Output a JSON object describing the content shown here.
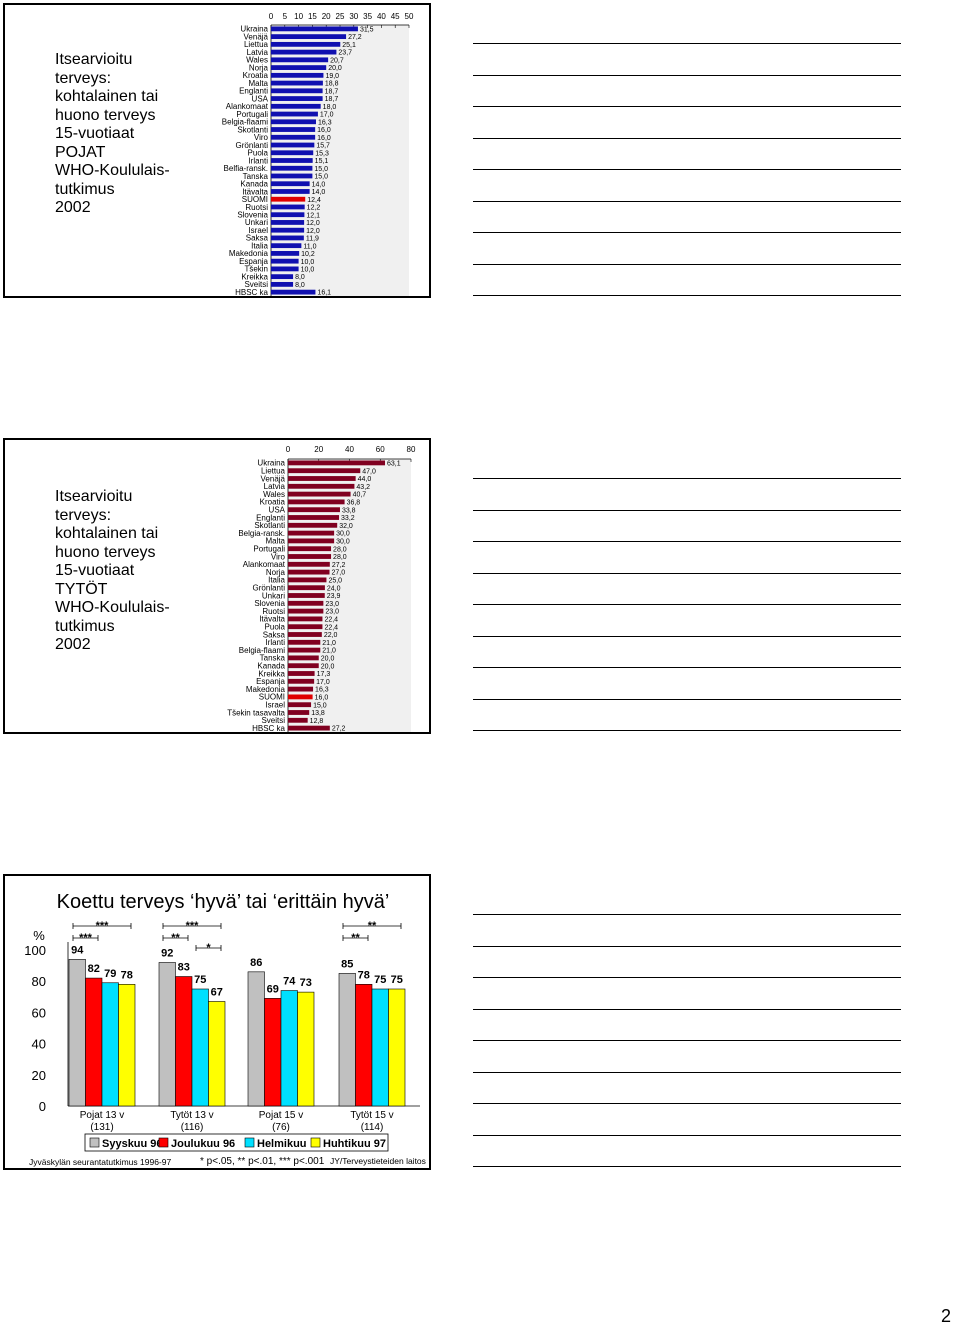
{
  "page_number": "2",
  "panels": {
    "boys": {
      "title_lines": [
        "Itsearvioitu",
        "terveys:",
        "kohtalainen tai",
        "huono terveys",
        "15-vuotiaat",
        "POJAT",
        "WHO-Koululais-",
        "tutkimus",
        "2002"
      ]
    },
    "girls": {
      "title_lines": [
        "Itsearvioitu",
        "terveys:",
        "kohtalainen tai",
        "huono terveys",
        "15-vuotiaat",
        "TYTÖT",
        "WHO-Koululais-",
        "tutkimus",
        "2002"
      ]
    },
    "health": {
      "title": "Koettu terveys ‘hyvä’ tai ‘erittäin hyvä’",
      "footer_left": "Jyväskylän seurantatutkimus 1996-97",
      "footer_mid": "* p<.05, ** p<.01, *** p<.001",
      "footer_right": "JY/Terveystieteiden laitos"
    }
  },
  "chart_data": [
    {
      "type": "bar",
      "orientation": "horizontal",
      "xlim": [
        0,
        50
      ],
      "xticks": [
        0,
        5,
        10,
        15,
        20,
        25,
        30,
        35,
        40,
        45,
        50
      ],
      "highlight": "SUOMI",
      "highlight_color": "#e00000",
      "bar_color": "#1010b0",
      "categories": [
        "Ukraina",
        "Venäjä",
        "Liettua",
        "Latvia",
        "Wales",
        "Norja",
        "Kroatia",
        "Malta",
        "Englanti",
        "USA",
        "Alankomaat",
        "Portugali",
        "Belgia-flaami",
        "Skotlanti",
        "Viro",
        "Grönlanti",
        "Puola",
        "Irlanti",
        "Belfia-ransk.",
        "Tanska",
        "Kanada",
        "Itävalta",
        "SUOMI",
        "Ruotsi",
        "Slovenia",
        "Unkari",
        "Israel",
        "Saksa",
        "Italia",
        "Makedonia",
        "Espanja",
        "Tšekin",
        "Kreikka",
        "Sveitsi",
        "HBSC ka"
      ],
      "values": [
        31.5,
        27.2,
        25.1,
        23.7,
        20.7,
        20.0,
        19.0,
        18.8,
        18.7,
        18.7,
        18.0,
        17.0,
        16.3,
        16.0,
        16.0,
        15.7,
        15.3,
        15.1,
        15.0,
        15.0,
        14.0,
        14.0,
        12.4,
        12.2,
        12.1,
        12.0,
        12.0,
        11.9,
        11.0,
        10.2,
        10.0,
        10.0,
        8.0,
        8.0,
        16.1
      ],
      "labels": [
        "31,5",
        "27,2",
        "25,1",
        "23,7",
        "20,7",
        "20,0",
        "19,0",
        "18,8",
        "18,7",
        "18,7",
        "18,0",
        "17,0",
        "16,3",
        "16,0",
        "16,0",
        "15,7",
        "15,3",
        "15,1",
        "15,0",
        "15,0",
        "14,0",
        "14,0",
        "12,4",
        "12,2",
        "12,1",
        "12,0",
        "12,0",
        "11,9",
        "11,0",
        "10,2",
        "10,0",
        "10,0",
        "8,0",
        "8,0",
        "16,1"
      ]
    },
    {
      "type": "bar",
      "orientation": "horizontal",
      "xlim": [
        0,
        80
      ],
      "xticks": [
        0,
        20,
        40,
        60,
        80
      ],
      "highlight": "SUOMI",
      "highlight_color": "#e00000",
      "bar_color": "#800020",
      "categories": [
        "Ukraina",
        "Liettua",
        "Venäjä",
        "Latvia",
        "Wales",
        "Kroatia",
        "USA",
        "Englanti",
        "Skotlanti",
        "Belgia-ransk.",
        "Malta",
        "Portugali",
        "Viro",
        "Alankomaat",
        "Norja",
        "Italia",
        "Grönlanti",
        "Unkari",
        "Slovenia",
        "Ruotsi",
        "Itävalta",
        "Puola",
        "Saksa",
        "Irlanti",
        "Belgia-flaami",
        "Tanska",
        "Kanada",
        "Kreikka",
        "Espanja",
        "Makedonia",
        "SUOMI",
        "Israel",
        "Tšekin tasavalta",
        "Sveitsi",
        "HBSC ka"
      ],
      "values": [
        63.1,
        47.0,
        44.0,
        43.2,
        40.7,
        36.8,
        33.8,
        33.2,
        32.0,
        30.0,
        30.0,
        28.0,
        28.0,
        27.2,
        27.0,
        25.0,
        24.0,
        23.9,
        23.0,
        23.0,
        22.4,
        22.4,
        22.0,
        21.0,
        21.0,
        20.0,
        20.0,
        17.3,
        17.0,
        16.3,
        16.0,
        15.0,
        13.8,
        12.8,
        27.2
      ],
      "labels": [
        "63,1",
        "47,0",
        "44,0",
        "43,2",
        "40,7",
        "36,8",
        "33,8",
        "33,2",
        "32,0",
        "30,0",
        "30,0",
        "28,0",
        "28,0",
        "27,2",
        "27,0",
        "25,0",
        "24,0",
        "23,9",
        "23,0",
        "23,0",
        "22,4",
        "22,4",
        "22,0",
        "21,0",
        "21,0",
        "20,0",
        "20,0",
        "17,3",
        "17,0",
        "16,3",
        "16,0",
        "15,0",
        "13,8",
        "12,8",
        "27,2"
      ]
    },
    {
      "type": "bar",
      "title": "Koettu terveys ‘hyvä’ tai ‘erittäin hyvä’",
      "ylabel": "%",
      "ylim": [
        0,
        100
      ],
      "yticks": [
        0,
        20,
        40,
        60,
        80,
        100
      ],
      "categories": [
        "Pojat 13 v\n(131)",
        "Tytöt 13 v\n(116)",
        "Pojat 15 v\n(76)",
        "Tytöt 15 v\n(114)"
      ],
      "series": [
        {
          "name": "Syyskuu 96",
          "color": "#c0c0c0",
          "values": [
            94,
            92,
            86,
            85
          ]
        },
        {
          "name": "Joulukuu 96",
          "color": "#ff0000",
          "values": [
            82,
            83,
            69,
            78
          ]
        },
        {
          "name": "Helmikuu",
          "color": "#00e0ff",
          "values": [
            79,
            75,
            74,
            75
          ]
        },
        {
          "name": "Huhtikuu 97",
          "color": "#ffff00",
          "values": [
            78,
            67,
            73,
            75
          ]
        }
      ],
      "significance": [
        {
          "group": 0,
          "from": 0,
          "to": 3,
          "label": "***",
          "level": 2
        },
        {
          "group": 0,
          "from": 0,
          "to": 1,
          "label": "***",
          "level": 1
        },
        {
          "group": 1,
          "from": 0,
          "to": 3,
          "label": "***",
          "level": 2
        },
        {
          "group": 1,
          "from": 0,
          "to": 1,
          "label": "**",
          "level": 1
        },
        {
          "group": 1,
          "from": 2,
          "to": 3,
          "label": "*",
          "level": 0
        },
        {
          "group": 3,
          "from": 0,
          "to": 3,
          "label": "**",
          "level": 2
        },
        {
          "group": 3,
          "from": 0,
          "to": 1,
          "label": "**",
          "level": 1
        }
      ]
    }
  ]
}
